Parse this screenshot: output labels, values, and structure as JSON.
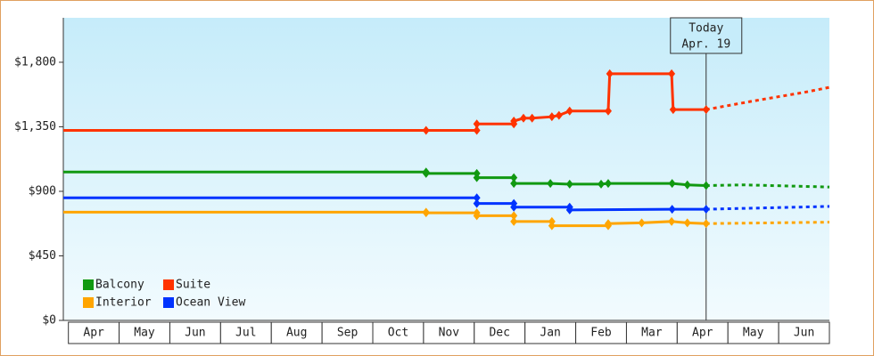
{
  "chart_data": {
    "type": "line",
    "categories": [
      "Apr",
      "May",
      "Jun",
      "Jul",
      "Aug",
      "Sep",
      "Oct",
      "Nov",
      "Dec",
      "Jan",
      "Feb",
      "Mar",
      "Apr",
      "May",
      "Jun"
    ],
    "xlim": [
      -0.1,
      15
    ],
    "ylim": [
      0,
      2110
    ],
    "yticks": [
      {
        "value": 0,
        "label": "$0"
      },
      {
        "value": 450,
        "label": "$450"
      },
      {
        "value": 900,
        "label": "$900"
      },
      {
        "value": 1350,
        "label": "$1,350"
      },
      {
        "value": 1800,
        "label": "$1,800"
      }
    ],
    "today_x": 12.57,
    "today_label": [
      "Today",
      "Apr. 19"
    ],
    "series": [
      {
        "name": "Balcony",
        "color": "#119911",
        "x": [
          -0.1,
          7.05,
          7.05,
          8.05,
          8.05,
          8.78,
          8.78,
          9.5,
          9.88,
          10.5,
          10.64,
          11.9,
          12.2,
          12.57
        ],
        "values": [
          1035,
          1035,
          1025,
          1025,
          995,
          995,
          955,
          955,
          950,
          950,
          955,
          955,
          945,
          940
        ],
        "forecast_x": [
          12.57,
          13.3,
          15
        ],
        "forecast_values": [
          940,
          945,
          930
        ]
      },
      {
        "name": "Suite",
        "color": "#ff3300",
        "x": [
          -0.1,
          7.05,
          8.05,
          8.05,
          8.78,
          8.78,
          8.97,
          9.14,
          9.53,
          9.67,
          9.88,
          10.64,
          10.67,
          11.89,
          11.92,
          12.57
        ],
        "values": [
          1325,
          1325,
          1325,
          1370,
          1370,
          1390,
          1410,
          1410,
          1420,
          1430,
          1460,
          1460,
          1720,
          1720,
          1470,
          1470
        ],
        "forecast_x": [
          12.57,
          13.5,
          14.5,
          15
        ],
        "forecast_values": [
          1470,
          1530,
          1590,
          1625
        ]
      },
      {
        "name": "Interior",
        "color": "#ffa500",
        "x": [
          -0.1,
          7.05,
          7.05,
          8.05,
          8.05,
          8.78,
          8.78,
          9.53,
          9.53,
          10.64,
          10.64,
          11.3,
          11.89,
          12.2,
          12.57
        ],
        "values": [
          755,
          755,
          750,
          750,
          730,
          730,
          690,
          690,
          660,
          660,
          675,
          680,
          690,
          680,
          675
        ],
        "forecast_x": [
          12.57,
          15
        ],
        "forecast_values": [
          675,
          685
        ]
      },
      {
        "name": "Ocean View",
        "color": "#0033ff",
        "x": [
          -0.1,
          8.05,
          8.05,
          8.78,
          8.78,
          9.88,
          9.88,
          11.9,
          12.57
        ],
        "values": [
          855,
          855,
          815,
          815,
          790,
          790,
          770,
          775,
          775
        ],
        "forecast_x": [
          12.57,
          15
        ],
        "forecast_values": [
          775,
          795
        ]
      }
    ]
  }
}
